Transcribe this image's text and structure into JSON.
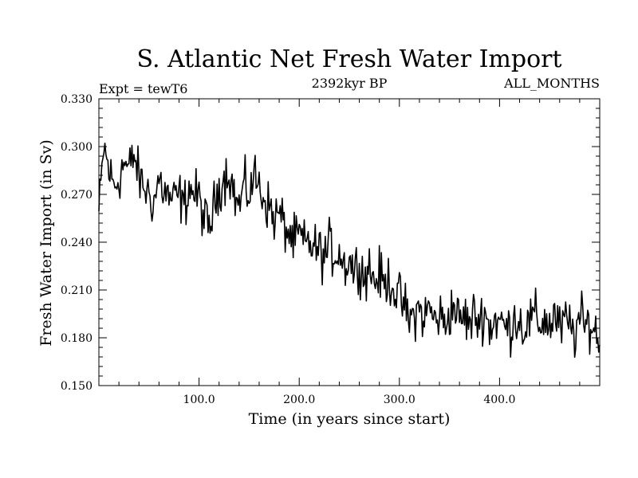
{
  "chart_data": {
    "type": "line",
    "title": "S. Atlantic Net Fresh Water Import",
    "subtitle_left": "Expt = tewT6",
    "subtitle_center": "2392kyr BP",
    "subtitle_right": "ALL_MONTHS",
    "xlabel": "Time (in years since start)",
    "ylabel": "Fresh Water Import (in Sv)",
    "xlim": [
      0,
      500
    ],
    "ylim": [
      0.15,
      0.33
    ],
    "x_ticks": [
      100,
      200,
      300,
      400
    ],
    "x_tick_labels": [
      "100.0",
      "200.0",
      "300.0",
      "400.0"
    ],
    "y_ticks": [
      0.15,
      0.18,
      0.21,
      0.24,
      0.27,
      0.3,
      0.33
    ],
    "y_tick_labels": [
      "0.150",
      "0.180",
      "0.210",
      "0.240",
      "0.270",
      "0.300",
      "0.330"
    ],
    "grid": false,
    "series": [
      {
        "name": "Fresh Water Import",
        "color": "#000000",
        "x": [
          0,
          5,
          10,
          15,
          20,
          25,
          30,
          35,
          40,
          45,
          50,
          55,
          60,
          65,
          70,
          75,
          80,
          85,
          90,
          95,
          100,
          105,
          110,
          115,
          120,
          125,
          130,
          135,
          140,
          145,
          150,
          155,
          160,
          165,
          170,
          175,
          180,
          185,
          190,
          195,
          200,
          205,
          210,
          215,
          220,
          225,
          230,
          235,
          240,
          245,
          250,
          255,
          260,
          265,
          270,
          275,
          280,
          285,
          290,
          295,
          300,
          305,
          310,
          315,
          320,
          325,
          330,
          335,
          340,
          345,
          350,
          355,
          360,
          365,
          370,
          375,
          380,
          385,
          390,
          395,
          400,
          405,
          410,
          415,
          420,
          425,
          430,
          435,
          440,
          445,
          450,
          455,
          460,
          465,
          470,
          475,
          480,
          485,
          490,
          495,
          500
        ],
        "y": [
          0.258,
          0.3,
          0.285,
          0.275,
          0.28,
          0.29,
          0.285,
          0.295,
          0.28,
          0.275,
          0.27,
          0.265,
          0.28,
          0.272,
          0.268,
          0.266,
          0.27,
          0.262,
          0.275,
          0.27,
          0.268,
          0.255,
          0.248,
          0.262,
          0.275,
          0.28,
          0.285,
          0.27,
          0.262,
          0.275,
          0.27,
          0.282,
          0.275,
          0.268,
          0.262,
          0.255,
          0.258,
          0.25,
          0.245,
          0.24,
          0.245,
          0.238,
          0.24,
          0.236,
          0.235,
          0.23,
          0.238,
          0.232,
          0.235,
          0.225,
          0.23,
          0.222,
          0.228,
          0.218,
          0.225,
          0.215,
          0.22,
          0.212,
          0.218,
          0.21,
          0.205,
          0.2,
          0.19,
          0.195,
          0.198,
          0.192,
          0.2,
          0.19,
          0.195,
          0.188,
          0.196,
          0.2,
          0.19,
          0.194,
          0.188,
          0.195,
          0.19,
          0.198,
          0.185,
          0.192,
          0.19,
          0.188,
          0.185,
          0.194,
          0.19,
          0.186,
          0.19,
          0.194,
          0.188,
          0.192,
          0.187,
          0.195,
          0.185,
          0.19,
          0.188,
          0.182,
          0.193,
          0.186,
          0.19,
          0.184,
          0.18
        ],
        "noise_amplitude": 0.012
      }
    ]
  }
}
